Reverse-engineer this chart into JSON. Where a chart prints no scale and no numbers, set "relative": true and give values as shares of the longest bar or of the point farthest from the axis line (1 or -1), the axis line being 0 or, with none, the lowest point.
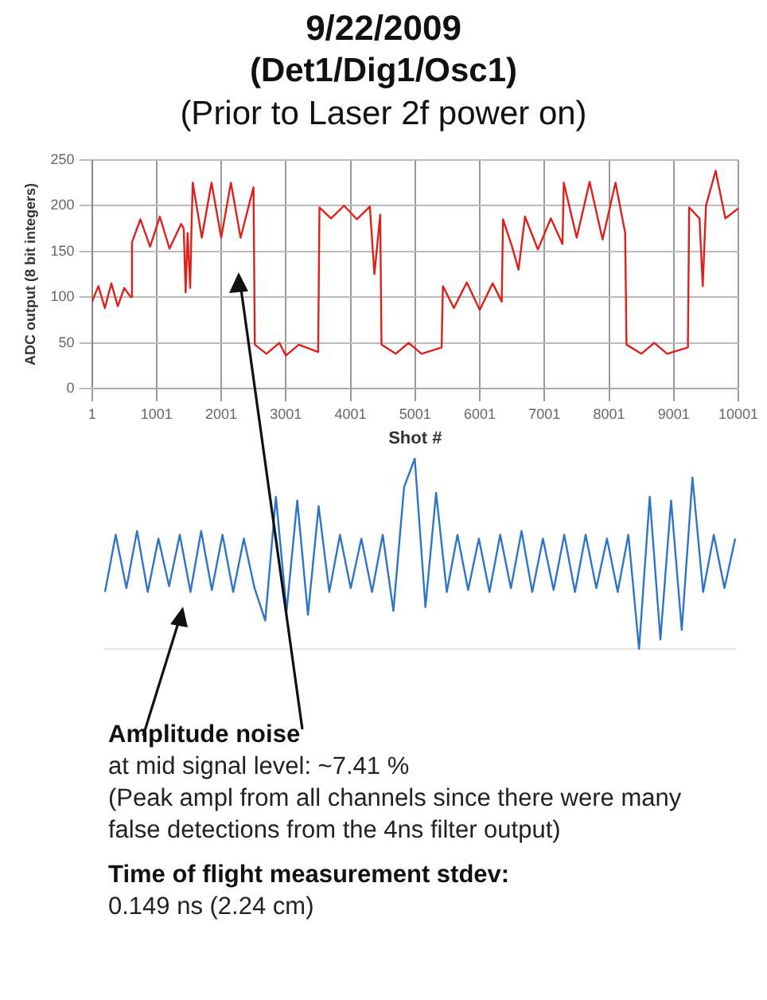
{
  "chart_data": [
    {
      "type": "line",
      "title": "9/22/2009",
      "subtitle": "(Det1/Dig1/Osc1)\n(Prior to Laser 2f power on)",
      "xlabel": "Shot #",
      "ylabel": "ADC output (8 bit integers)",
      "xlim": [
        1,
        10001
      ],
      "xticks": [
        1,
        1001,
        2001,
        3001,
        4001,
        5001,
        6001,
        7001,
        8001,
        9001,
        10001
      ],
      "ylim": [
        0,
        250
      ],
      "yticks": [
        0,
        50,
        100,
        150,
        200,
        250
      ],
      "grid": true,
      "marker": "none",
      "series": [
        {
          "color": "#e0201b",
          "x": [
            1,
            100,
            200,
            300,
            400,
            500,
            600,
            620,
            750,
            900,
            1050,
            1200,
            1380,
            1420,
            1450,
            1480,
            1520,
            1540,
            1560,
            1700,
            1850,
            2000,
            2150,
            2300,
            2500,
            2520,
            2700,
            2900,
            3000,
            3200,
            3500,
            3520,
            3700,
            3900,
            4100,
            4300,
            4370,
            4460,
            4480,
            4700,
            4900,
            5100,
            5410,
            5430,
            5600,
            5800,
            6000,
            6200,
            6340,
            6360,
            6500,
            6600,
            6700,
            6900,
            7100,
            7280,
            7300,
            7500,
            7700,
            7900,
            8100,
            8250,
            8270,
            8500,
            8700,
            8900,
            9220,
            9240,
            9400,
            9450,
            9500,
            9650,
            9800,
            10001
          ],
          "values": [
            95,
            112,
            88,
            115,
            90,
            110,
            100,
            160,
            185,
            155,
            188,
            153,
            180,
            175,
            105,
            170,
            110,
            175,
            225,
            165,
            225,
            165,
            225,
            165,
            220,
            48,
            38,
            50,
            36,
            48,
            40,
            198,
            186,
            200,
            185,
            199,
            125,
            190,
            48,
            38,
            50,
            38,
            45,
            112,
            88,
            116,
            86,
            115,
            95,
            185,
            155,
            130,
            188,
            152,
            186,
            158,
            225,
            165,
            226,
            163,
            225,
            170,
            48,
            38,
            50,
            38,
            45,
            198,
            186,
            112,
            200,
            238,
            186,
            197
          ]
        }
      ]
    },
    {
      "type": "line",
      "relative": true,
      "categories": [
        null,
        null,
        null,
        null,
        null,
        null,
        null,
        null,
        null,
        null,
        null,
        null,
        null,
        null,
        null,
        null,
        null,
        null,
        null,
        null,
        null,
        null,
        null,
        null,
        null,
        null,
        null,
        null,
        null,
        null,
        null,
        null,
        null,
        null,
        null,
        null,
        null,
        null,
        null,
        null,
        null,
        null,
        null,
        null,
        null,
        null,
        null,
        null,
        null,
        null,
        null,
        null,
        null,
        null,
        null,
        null,
        null,
        null,
        null,
        null
      ],
      "series": [
        {
          "color": "#2e75c8",
          "values": [
            0.3,
            0.6,
            0.32,
            0.62,
            0.3,
            0.58,
            0.33,
            0.6,
            0.3,
            0.62,
            0.31,
            0.6,
            0.3,
            0.58,
            0.32,
            0.15,
            0.8,
            0.2,
            0.78,
            0.18,
            0.75,
            0.3,
            0.6,
            0.32,
            0.58,
            0.3,
            0.6,
            0.2,
            0.85,
            1,
            0.22,
            0.82,
            0.3,
            0.6,
            0.31,
            0.58,
            0.3,
            0.6,
            0.32,
            0.62,
            0.3,
            0.58,
            0.31,
            0.6,
            0.3,
            0.6,
            0.32,
            0.58,
            0.3,
            0.6,
            0,
            0.8,
            0.05,
            0.78,
            0.1,
            0.9,
            0.3,
            0.6,
            0.32,
            0.58
          ]
        }
      ],
      "annotations": [
        "Amplitude noise",
        "at mid signal level: ~7.41 %",
        "(Peak ampl from all channels since there were many false detections from the 4ns filter output)",
        "Time of flight measurement stdev:",
        "0.149 ns (2.24 cm)"
      ]
    }
  ]
}
